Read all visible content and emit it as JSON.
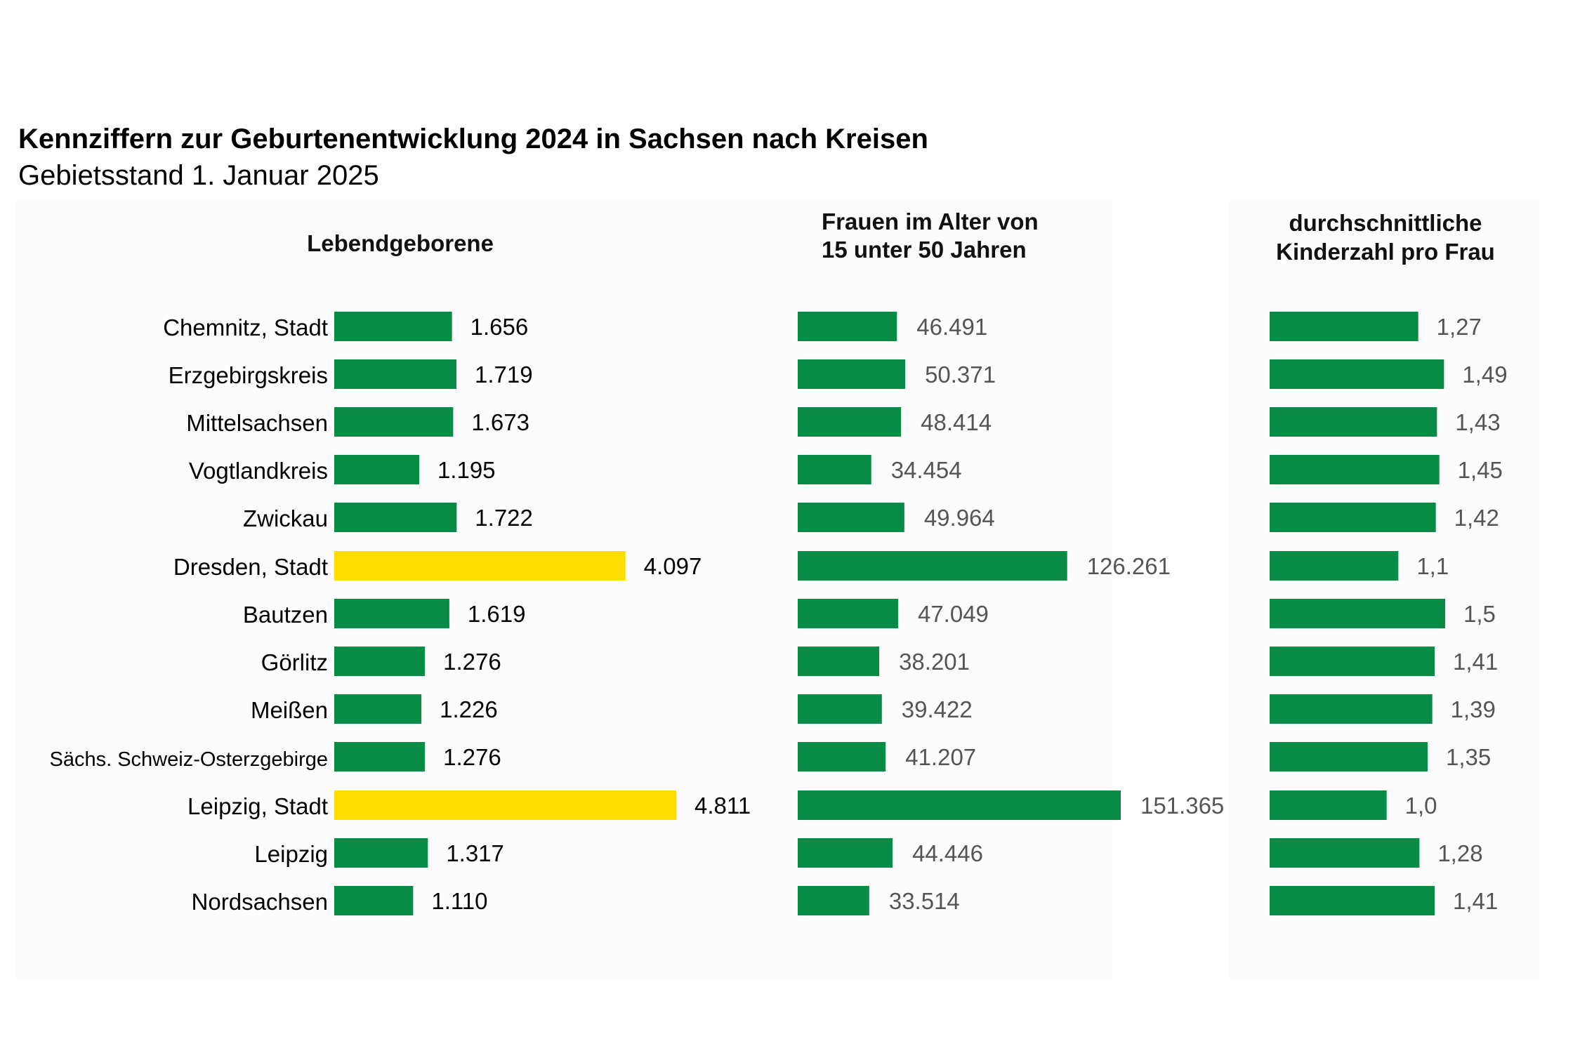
{
  "title": "Kennziffern zur Geburtenentwicklung 2024 in Sachsen nach Kreisen",
  "subtitle": "Gebietsstand 1. Januar 2025",
  "colors": {
    "bar": "#078B45",
    "highlight": "#FFDD00",
    "panel_bg": "#FCFCFC",
    "value_text_dark": "#000000",
    "value_text_grey": "#555555"
  },
  "chart_data": {
    "type": "bar",
    "orientation": "horizontal",
    "categories": [
      "Chemnitz, Stadt",
      "Erzgebirgskreis",
      "Mittelsachsen",
      "Vogtlandkreis",
      "Zwickau",
      "Dresden, Stadt",
      "Bautzen",
      "Görlitz",
      "Meißen",
      "Sächs. Schweiz-Osterzgebirge",
      "Leipzig, Stadt",
      "Leipzig",
      "Nordsachsen"
    ],
    "highlighted_categories": [
      "Dresden, Stadt",
      "Leipzig, Stadt"
    ],
    "panels": [
      {
        "title_lines": [
          "Lebendgeborene"
        ],
        "values": [
          1656,
          1719,
          1673,
          1195,
          1722,
          4097,
          1619,
          1276,
          1226,
          1276,
          4811,
          1317,
          1110
        ],
        "labels": [
          "1.656",
          "1.719",
          "1.673",
          "1.195",
          "1.722",
          "4.097",
          "1.619",
          "1.276",
          "1.226",
          "1.276",
          "4.811",
          "1.317",
          "1.110"
        ]
      },
      {
        "title_lines": [
          "Frauen im Alter von",
          "15 unter 50 Jahren"
        ],
        "values": [
          46491,
          50371,
          48414,
          34454,
          49964,
          126261,
          47049,
          38201,
          39422,
          41207,
          151365,
          44446,
          33514
        ],
        "labels": [
          "46.491",
          "50.371",
          "48.414",
          "34.454",
          "49.964",
          "126.261",
          "47.049",
          "38.201",
          "39.422",
          "41.207",
          "151.365",
          "44.446",
          "33.514"
        ]
      },
      {
        "title_lines": [
          "durchschnittliche",
          "Kinderzahl pro Frau"
        ],
        "values": [
          1.27,
          1.49,
          1.43,
          1.45,
          1.42,
          1.1,
          1.5,
          1.41,
          1.39,
          1.35,
          1.0,
          1.28,
          1.41
        ],
        "labels": [
          "1,27",
          "1,49",
          "1,43",
          "1,45",
          "1,42",
          "1,1",
          "1,5",
          "1,41",
          "1,39",
          "1,35",
          "1,0",
          "1,28",
          "1,41"
        ]
      }
    ]
  }
}
